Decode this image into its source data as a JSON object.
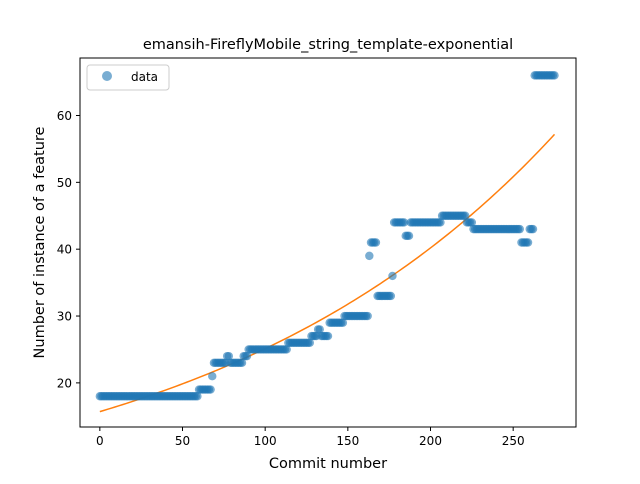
{
  "chart_data": {
    "type": "scatter",
    "title": "emansih-FireflyMobile_string_template-exponential",
    "xlabel": "Commit number",
    "ylabel": "Number of instance of a feature",
    "xlim": [
      -12,
      288
    ],
    "ylim": [
      13.4,
      68.6
    ],
    "xticks": [
      0,
      50,
      100,
      150,
      200,
      250
    ],
    "yticks": [
      20,
      30,
      40,
      50,
      60
    ],
    "grid": false,
    "legend": {
      "placement": "top-left",
      "entries": [
        "data"
      ]
    },
    "colors": {
      "data": "#1f77b4",
      "fit": "#ff7f0e"
    },
    "series": [
      {
        "name": "data",
        "kind": "scatter",
        "segments": [
          {
            "x_start": 0,
            "x_end": 59,
            "y": 18
          },
          {
            "x_start": 60,
            "x_end": 67,
            "y": 19
          },
          {
            "x_start": 68,
            "x_end": 68,
            "y": 21
          },
          {
            "x_start": 69,
            "x_end": 76,
            "y": 23
          },
          {
            "x_start": 77,
            "x_end": 78,
            "y": 24
          },
          {
            "x_start": 79,
            "x_end": 86,
            "y": 23
          },
          {
            "x_start": 87,
            "x_end": 89,
            "y": 24
          },
          {
            "x_start": 90,
            "x_end": 113,
            "y": 25
          },
          {
            "x_start": 114,
            "x_end": 127,
            "y": 26
          },
          {
            "x_start": 128,
            "x_end": 131,
            "y": 27
          },
          {
            "x_start": 132,
            "x_end": 133,
            "y": 28
          },
          {
            "x_start": 134,
            "x_end": 138,
            "y": 27
          },
          {
            "x_start": 139,
            "x_end": 147,
            "y": 29
          },
          {
            "x_start": 148,
            "x_end": 162,
            "y": 30
          },
          {
            "x_start": 163,
            "x_end": 163,
            "y": 39
          },
          {
            "x_start": 164,
            "x_end": 167,
            "y": 41
          },
          {
            "x_start": 168,
            "x_end": 176,
            "y": 33
          },
          {
            "x_start": 177,
            "x_end": 177,
            "y": 36
          },
          {
            "x_start": 178,
            "x_end": 184,
            "y": 44
          },
          {
            "x_start": 185,
            "x_end": 187,
            "y": 42
          },
          {
            "x_start": 188,
            "x_end": 206,
            "y": 44
          },
          {
            "x_start": 207,
            "x_end": 221,
            "y": 45
          },
          {
            "x_start": 222,
            "x_end": 225,
            "y": 44
          },
          {
            "x_start": 226,
            "x_end": 254,
            "y": 43
          },
          {
            "x_start": 255,
            "x_end": 259,
            "y": 41
          },
          {
            "x_start": 260,
            "x_end": 262,
            "y": 43
          },
          {
            "x_start": 263,
            "x_end": 275,
            "y": 66
          }
        ]
      },
      {
        "name": "",
        "kind": "line",
        "model": "exponential",
        "a": 15.7,
        "b": 0.0047,
        "x_range": [
          0,
          275
        ]
      }
    ]
  }
}
